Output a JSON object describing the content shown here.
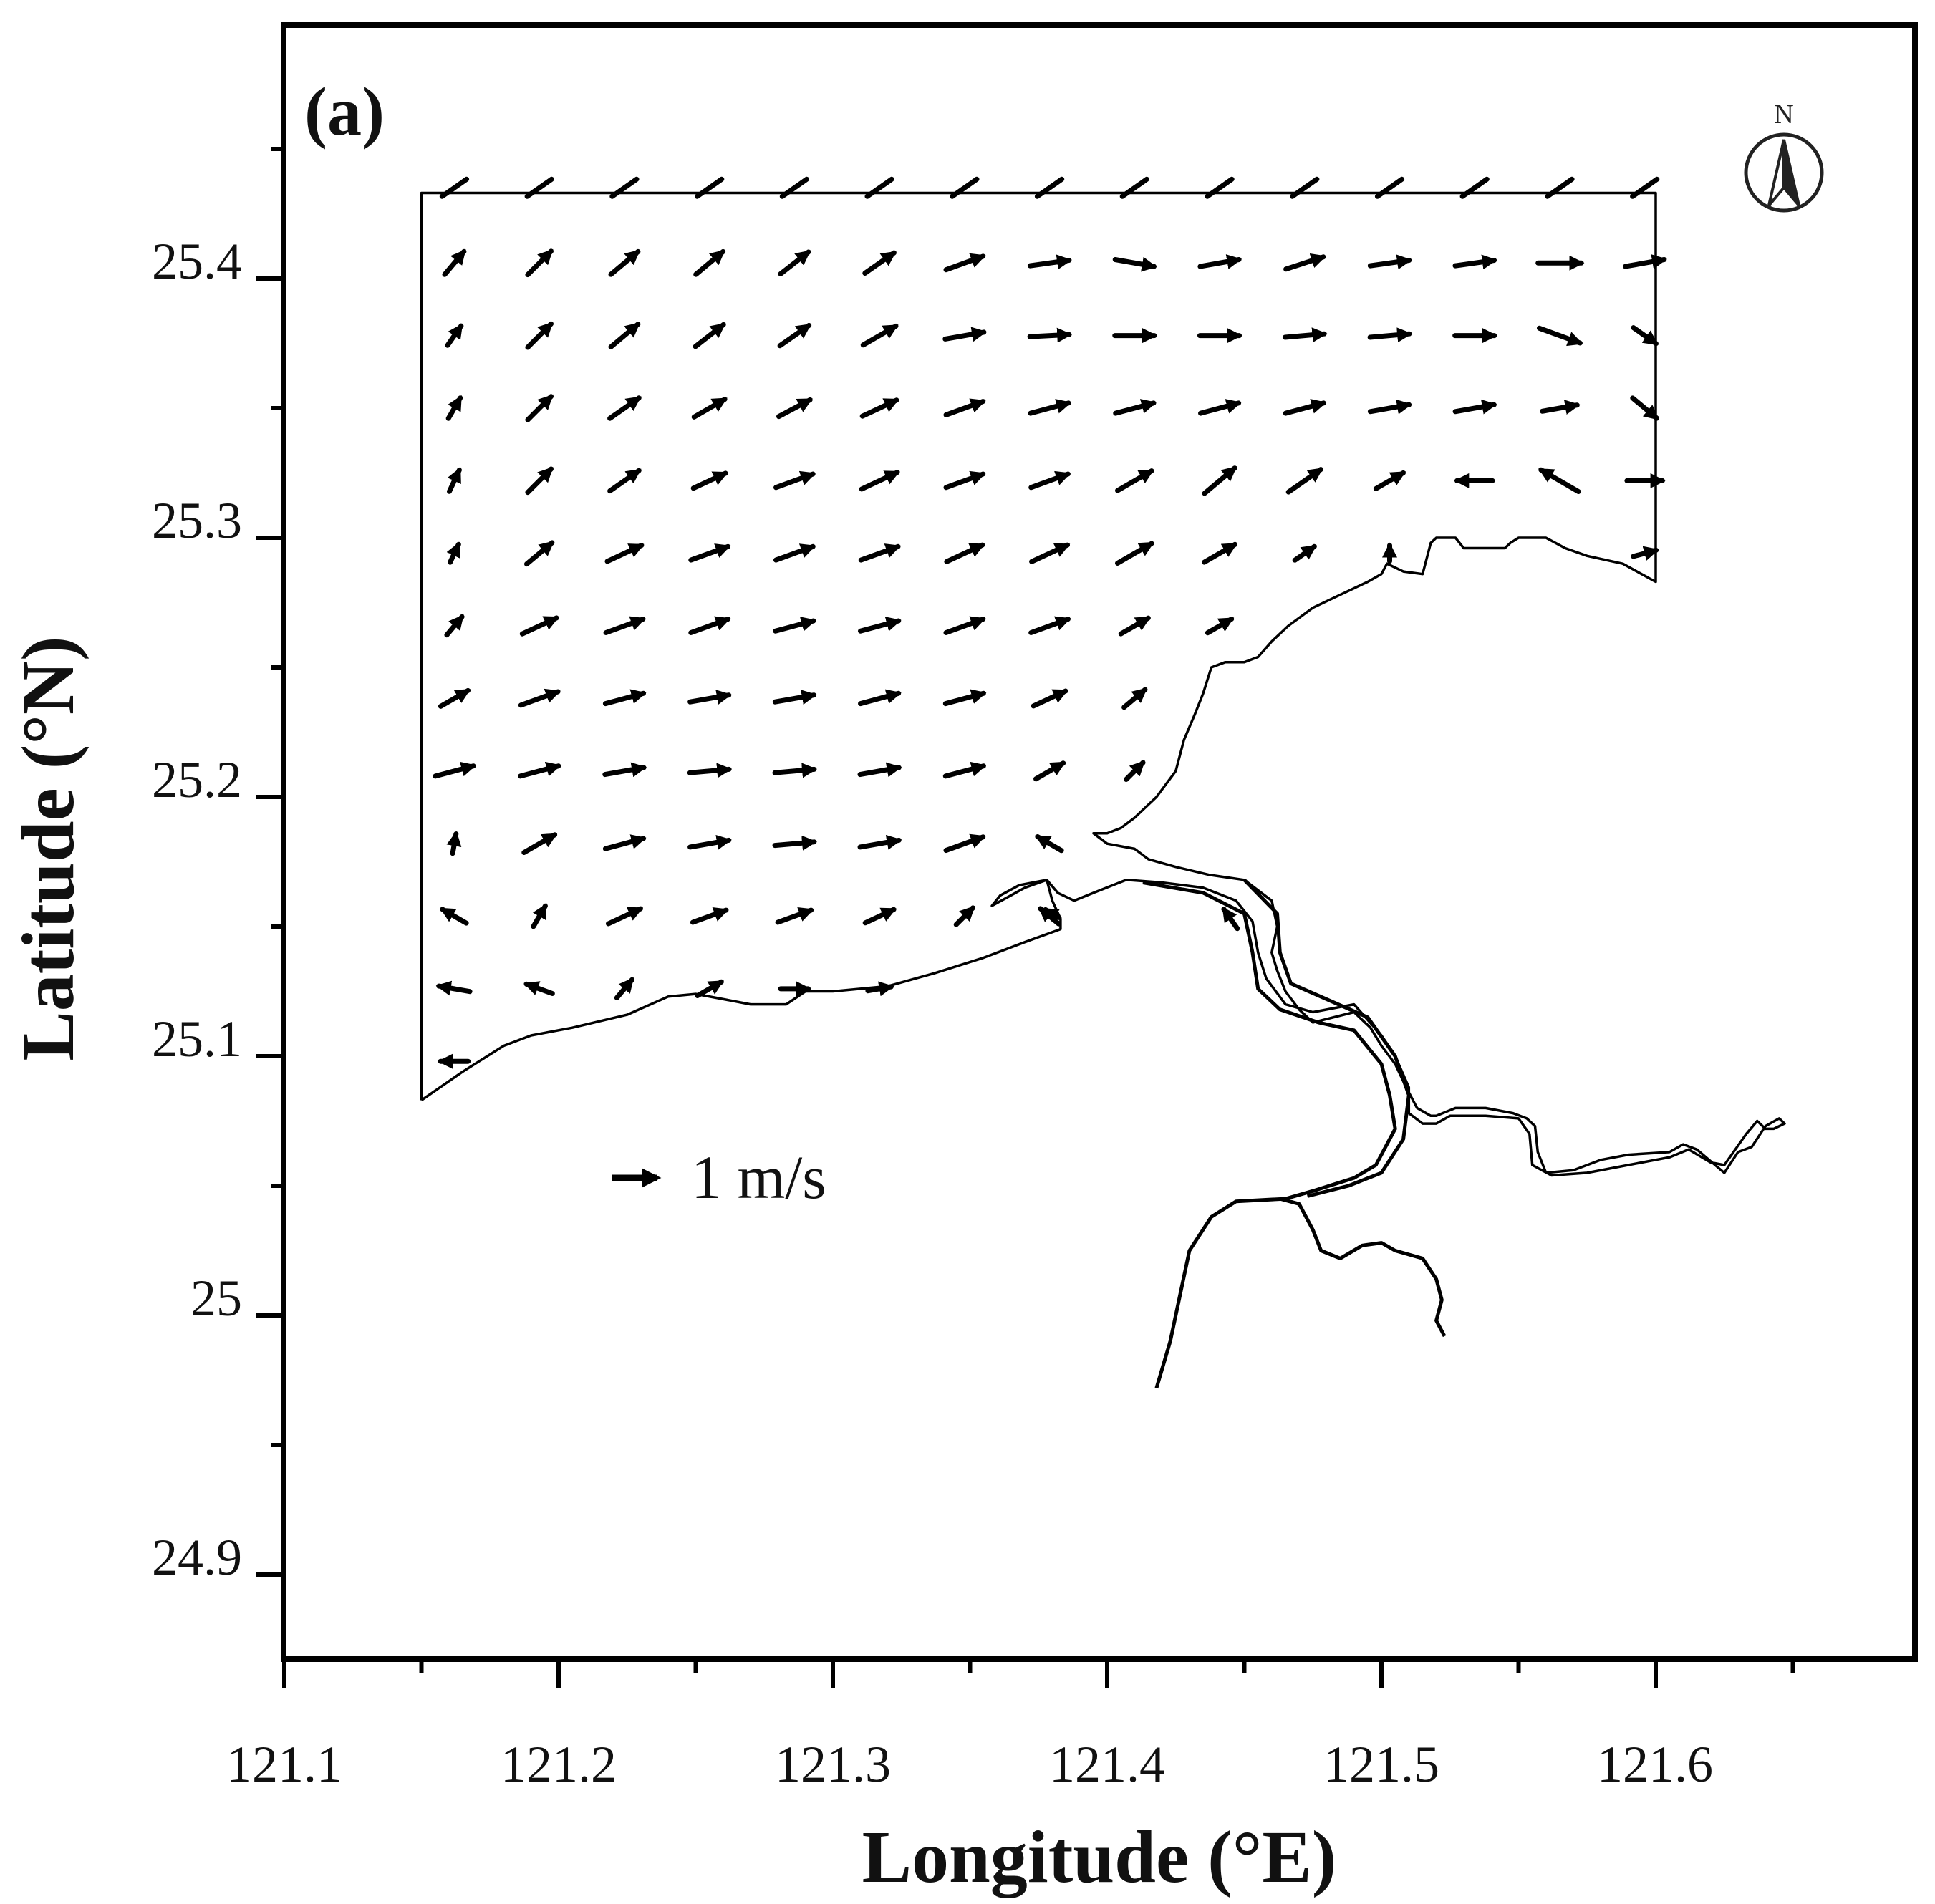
{
  "panel_label": "(a)",
  "x_axis": {
    "title": "Longitude (°E)",
    "ticks": [
      "121.1",
      "121.2",
      "121.3",
      "121.4",
      "121.5",
      "121.6"
    ]
  },
  "y_axis": {
    "title": "Latitude (°N)",
    "ticks": [
      "24.9",
      "25",
      "25.1",
      "25.2",
      "25.3",
      "25.4"
    ]
  },
  "north_arrow": {
    "label": "N",
    "icon": "north-arrow-icon"
  },
  "scale_vector": {
    "label": "1 m/s",
    "speed_m_s": 1
  },
  "chart_data": {
    "type": "vector-field",
    "xlim": [
      121.095,
      121.695
    ],
    "ylim": [
      24.855,
      25.49
    ],
    "grid": false,
    "vector_color": "#000000",
    "coast_color": "#000000",
    "columns_lon": [
      121.162,
      121.193,
      121.224,
      121.255,
      121.286,
      121.317,
      121.348,
      121.379,
      121.41,
      121.441,
      121.472,
      121.503,
      121.534,
      121.565,
      121.596
    ],
    "rows_lat": [
      25.435,
      25.406,
      25.378,
      25.35,
      25.322,
      25.294,
      25.266,
      25.238,
      25.21,
      25.182,
      25.154,
      25.126,
      25.098
    ],
    "vectors": [
      {
        "lat": 25.435,
        "lon0": 121.162,
        "dirs_deg": [
          35,
          35,
          35,
          35,
          35,
          35,
          35,
          35,
          35,
          35,
          35,
          35,
          35,
          35,
          35
        ],
        "speeds": [
          0.38,
          0.38,
          0.38,
          0.38,
          0.38,
          0.38,
          0.38,
          0.38,
          0.38,
          0.38,
          0.38,
          0.38,
          0.38,
          0.38,
          0.38
        ]
      },
      {
        "lat": 25.406,
        "lon0": 121.162,
        "dirs_deg": [
          50,
          45,
          40,
          40,
          38,
          35,
          20,
          8,
          -10,
          10,
          18,
          8,
          8,
          0,
          10
        ],
        "speeds": [
          0.38,
          0.42,
          0.45,
          0.45,
          0.45,
          0.45,
          0.5,
          0.5,
          0.5,
          0.5,
          0.5,
          0.5,
          0.5,
          0.55,
          0.5
        ]
      },
      {
        "lat": 25.378,
        "lon0": 121.162,
        "dirs_deg": [
          55,
          45,
          40,
          38,
          35,
          30,
          10,
          3,
          0,
          0,
          5,
          5,
          0,
          -20,
          -35
        ],
        "speeds": [
          0.3,
          0.42,
          0.45,
          0.45,
          0.45,
          0.48,
          0.5,
          0.5,
          0.5,
          0.5,
          0.5,
          0.5,
          0.5,
          0.55,
          0.35
        ]
      },
      {
        "lat": 25.35,
        "lon0": 121.162,
        "dirs_deg": [
          60,
          45,
          35,
          30,
          28,
          25,
          20,
          15,
          15,
          15,
          15,
          10,
          10,
          10,
          -40
        ],
        "speeds": [
          0.3,
          0.42,
          0.45,
          0.45,
          0.45,
          0.48,
          0.5,
          0.5,
          0.5,
          0.5,
          0.5,
          0.5,
          0.5,
          0.45,
          0.4
        ]
      },
      {
        "lat": 25.322,
        "lon0": 121.162,
        "dirs_deg": [
          65,
          45,
          35,
          25,
          20,
          25,
          20,
          20,
          30,
          40,
          35,
          30,
          180,
          150,
          0
        ],
        "speeds": [
          0.3,
          0.42,
          0.45,
          0.45,
          0.5,
          0.5,
          0.5,
          0.5,
          0.5,
          0.5,
          0.5,
          0.4,
          0.45,
          0.55,
          0.45
        ]
      },
      {
        "lat": 25.294,
        "lon0": 121.162,
        "dirs_deg": [
          65,
          40,
          25,
          20,
          20,
          20,
          25,
          25,
          30,
          30,
          35,
          90,
          null,
          null,
          15
        ],
        "speeds": [
          0.25,
          0.42,
          0.48,
          0.5,
          0.5,
          0.5,
          0.5,
          0.5,
          0.5,
          0.45,
          0.3,
          0.2,
          null,
          null,
          0.3
        ]
      },
      {
        "lat": 25.266,
        "lon0": 121.162,
        "dirs_deg": [
          50,
          25,
          20,
          20,
          15,
          15,
          20,
          20,
          30,
          30,
          null,
          null,
          null,
          null,
          null
        ],
        "speeds": [
          0.3,
          0.48,
          0.5,
          0.5,
          0.5,
          0.5,
          0.5,
          0.5,
          0.4,
          0.35,
          null,
          null,
          null,
          null,
          null
        ]
      },
      {
        "lat": 25.238,
        "lon0": 121.162,
        "dirs_deg": [
          30,
          20,
          15,
          10,
          10,
          15,
          15,
          25,
          40,
          null,
          null,
          null,
          null,
          null,
          null
        ],
        "speeds": [
          0.4,
          0.5,
          0.5,
          0.5,
          0.5,
          0.5,
          0.5,
          0.45,
          0.35,
          null,
          null,
          null,
          null,
          null,
          null
        ]
      },
      {
        "lat": 25.21,
        "lon0": 121.162,
        "dirs_deg": [
          15,
          15,
          10,
          5,
          5,
          10,
          15,
          30,
          45,
          null,
          null,
          null,
          null,
          null,
          null
        ],
        "speeds": [
          0.5,
          0.5,
          0.5,
          0.5,
          0.5,
          0.5,
          0.5,
          0.4,
          0.3,
          null,
          null,
          null,
          null,
          null,
          null
        ]
      },
      {
        "lat": 25.182,
        "lon0": 121.162,
        "dirs_deg": [
          80,
          30,
          15,
          10,
          5,
          10,
          20,
          150,
          null,
          null,
          null,
          null,
          null,
          null,
          null
        ],
        "speeds": [
          0.25,
          0.45,
          0.5,
          0.5,
          0.5,
          0.5,
          0.5,
          0.35,
          null,
          null,
          null,
          null,
          null,
          null,
          null
        ]
      },
      {
        "lat": 25.154,
        "lon0": 121.162,
        "dirs_deg": [
          150,
          60,
          25,
          20,
          20,
          25,
          45,
          140,
          null,
          null,
          null,
          null,
          null,
          null,
          null
        ],
        "speeds": [
          0.35,
          0.3,
          0.45,
          0.45,
          0.45,
          0.4,
          0.3,
          0.3,
          null,
          null,
          null,
          null,
          null,
          null,
          null
        ]
      },
      {
        "lat": 25.126,
        "lon0": 121.162,
        "dirs_deg": [
          170,
          160,
          50,
          30,
          0,
          10,
          null,
          null,
          null,
          null,
          null,
          null,
          null,
          null,
          null
        ],
        "speeds": [
          0.4,
          0.35,
          0.3,
          0.35,
          0.35,
          0.3,
          null,
          null,
          null,
          null,
          null,
          null,
          null,
          null,
          null
        ]
      },
      {
        "lat": 25.098,
        "lon0": 121.162,
        "dirs_deg": [
          180,
          null,
          null,
          null,
          null,
          null,
          null,
          null,
          null,
          null,
          null,
          null,
          null,
          null,
          null
        ],
        "speeds": [
          0.35,
          null,
          null,
          null,
          null,
          null,
          null,
          null,
          null,
          null,
          null,
          null,
          null,
          null,
          null
        ]
      }
    ],
    "extra_vectors": [
      {
        "lon": 121.445,
        "lat": 25.153,
        "dir_deg": 125,
        "speed": 0.3
      },
      {
        "lon": 121.38,
        "lat": 25.155,
        "dir_deg": 150,
        "speed": 0.2
      }
    ],
    "domain_boundary": [
      [
        121.15,
        25.083
      ],
      [
        121.15,
        25.433
      ],
      [
        121.6,
        25.433
      ],
      [
        121.6,
        25.283
      ],
      [
        121.588,
        25.29
      ],
      [
        121.575,
        25.293
      ],
      [
        121.567,
        25.296
      ],
      [
        121.56,
        25.3
      ],
      [
        121.55,
        25.3
      ],
      [
        121.547,
        25.298
      ],
      [
        121.545,
        25.296
      ],
      [
        121.535,
        25.296
      ],
      [
        121.53,
        25.296
      ],
      [
        121.527,
        25.3
      ],
      [
        121.52,
        25.3
      ],
      [
        121.518,
        25.298
      ],
      [
        121.515,
        25.286
      ],
      [
        121.508,
        25.287
      ],
      [
        121.502,
        25.29
      ],
      [
        121.5,
        25.286
      ],
      [
        121.495,
        25.283
      ],
      [
        121.485,
        25.278
      ],
      [
        121.475,
        25.273
      ],
      [
        121.466,
        25.266
      ],
      [
        121.46,
        25.26
      ],
      [
        121.455,
        25.254
      ],
      [
        121.45,
        25.252
      ],
      [
        121.443,
        25.252
      ],
      [
        121.438,
        25.25
      ],
      [
        121.435,
        25.24
      ],
      [
        121.432,
        25.232
      ],
      [
        121.428,
        25.222
      ],
      [
        121.425,
        25.21
      ],
      [
        121.418,
        25.2
      ],
      [
        121.41,
        25.192
      ],
      [
        121.405,
        25.188
      ],
      [
        121.4,
        25.186
      ],
      [
        121.395,
        25.186
      ],
      [
        121.4,
        25.182
      ],
      [
        121.41,
        25.18
      ],
      [
        121.415,
        25.176
      ],
      [
        121.425,
        25.173
      ],
      [
        121.437,
        25.17
      ],
      [
        121.45,
        25.168
      ],
      [
        121.46,
        25.16
      ],
      [
        121.462,
        25.15
      ],
      [
        121.46,
        25.14
      ],
      [
        121.462,
        25.133
      ],
      [
        121.465,
        25.125
      ],
      [
        121.47,
        25.118
      ],
      [
        121.475,
        25.113
      ],
      [
        121.49,
        25.117
      ],
      [
        121.496,
        25.111
      ],
      [
        121.5,
        25.104
      ],
      [
        121.505,
        25.097
      ],
      [
        121.509,
        25.088
      ],
      [
        121.513,
        25.08
      ],
      [
        121.518,
        25.077
      ],
      [
        121.52,
        25.077
      ],
      [
        121.527,
        25.08
      ],
      [
        121.538,
        25.08
      ],
      [
        121.548,
        25.078
      ],
      [
        121.553,
        25.076
      ],
      [
        121.556,
        25.073
      ],
      [
        121.557,
        25.063
      ],
      [
        121.56,
        25.055
      ],
      [
        121.57,
        25.056
      ],
      [
        121.58,
        25.06
      ],
      [
        121.59,
        25.062
      ],
      [
        121.605,
        25.063
      ],
      [
        121.61,
        25.066
      ],
      [
        121.615,
        25.064
      ],
      [
        121.625,
        25.055
      ],
      [
        121.63,
        25.063
      ],
      [
        121.635,
        25.065
      ],
      [
        121.64,
        25.073
      ],
      [
        121.645,
        25.076
      ],
      [
        121.647,
        25.074
      ],
      [
        121.643,
        25.072
      ],
      [
        121.64,
        25.072
      ],
      [
        121.637,
        25.075
      ],
      [
        121.633,
        25.07
      ],
      [
        121.625,
        25.058
      ],
      [
        121.62,
        25.059
      ],
      [
        121.612,
        25.064
      ],
      [
        121.605,
        25.061
      ],
      [
        121.59,
        25.058
      ],
      [
        121.575,
        25.055
      ],
      [
        121.562,
        25.054
      ],
      [
        121.555,
        25.058
      ],
      [
        121.554,
        25.07
      ],
      [
        121.55,
        25.076
      ],
      [
        121.538,
        25.077
      ],
      [
        121.525,
        25.077
      ],
      [
        121.52,
        25.074
      ],
      [
        121.515,
        25.074
      ],
      [
        121.51,
        25.078
      ],
      [
        121.51,
        25.088
      ],
      [
        121.505,
        25.1
      ],
      [
        121.5,
        25.108
      ],
      [
        121.49,
        25.12
      ],
      [
        121.475,
        25.117
      ],
      [
        121.465,
        25.12
      ],
      [
        121.458,
        25.13
      ],
      [
        121.455,
        25.14
      ],
      [
        121.453,
        25.152
      ],
      [
        121.447,
        25.16
      ],
      [
        121.435,
        25.165
      ],
      [
        121.42,
        25.167
      ],
      [
        121.407,
        25.168
      ],
      [
        121.395,
        25.163
      ],
      [
        121.388,
        25.16
      ],
      [
        121.382,
        25.163
      ],
      [
        121.378,
        25.168
      ],
      [
        121.368,
        25.166
      ],
      [
        121.361,
        25.162
      ],
      [
        121.358,
        25.158
      ],
      [
        121.37,
        25.165
      ],
      [
        121.378,
        25.168
      ],
      [
        121.38,
        25.16
      ],
      [
        121.383,
        25.153
      ],
      [
        121.383,
        25.149
      ],
      [
        121.37,
        25.144
      ],
      [
        121.355,
        25.138
      ],
      [
        121.337,
        25.132
      ],
      [
        121.32,
        25.127
      ],
      [
        121.3,
        25.125
      ],
      [
        121.29,
        25.125
      ],
      [
        121.283,
        25.12
      ],
      [
        121.27,
        25.12
      ],
      [
        121.25,
        25.124
      ],
      [
        121.24,
        25.123
      ],
      [
        121.225,
        25.116
      ],
      [
        121.205,
        25.111
      ],
      [
        121.19,
        25.108
      ],
      [
        121.18,
        25.104
      ],
      [
        121.165,
        25.094
      ],
      [
        121.15,
        25.083
      ]
    ],
    "river_lines": [
      [
        [
          121.413,
          25.167
        ],
        [
          121.435,
          25.163
        ],
        [
          121.45,
          25.155
        ],
        [
          121.453,
          25.14
        ],
        [
          121.455,
          25.126
        ],
        [
          121.463,
          25.118
        ],
        [
          121.477,
          25.113
        ],
        [
          121.49,
          25.11
        ],
        [
          121.5,
          25.097
        ],
        [
          121.503,
          25.085
        ],
        [
          121.505,
          25.072
        ],
        [
          121.498,
          25.058
        ],
        [
          121.49,
          25.053
        ],
        [
          121.475,
          25.048
        ],
        [
          121.465,
          25.045
        ],
        [
          121.447,
          25.044
        ],
        [
          121.438,
          25.038
        ],
        [
          121.43,
          25.025
        ],
        [
          121.427,
          25.01
        ],
        [
          121.423,
          24.99
        ],
        [
          121.418,
          24.972
        ]
      ],
      [
        [
          121.463,
          25.045
        ],
        [
          121.47,
          25.043
        ],
        [
          121.475,
          25.033
        ],
        [
          121.478,
          25.025
        ],
        [
          121.485,
          25.022
        ],
        [
          121.493,
          25.027
        ],
        [
          121.5,
          25.028
        ],
        [
          121.505,
          25.025
        ],
        [
          121.515,
          25.022
        ],
        [
          121.52,
          25.014
        ],
        [
          121.522,
          25.006
        ],
        [
          121.52,
          24.998
        ],
        [
          121.523,
          24.992
        ]
      ],
      [
        [
          121.45,
          25.168
        ],
        [
          121.462,
          25.155
        ],
        [
          121.463,
          25.14
        ],
        [
          121.467,
          25.128
        ],
        [
          121.48,
          25.122
        ],
        [
          121.495,
          25.115
        ],
        [
          121.505,
          25.1
        ],
        [
          121.51,
          25.085
        ],
        [
          121.508,
          25.068
        ],
        [
          121.5,
          25.055
        ],
        [
          121.488,
          25.05
        ],
        [
          121.473,
          25.046
        ]
      ]
    ]
  }
}
